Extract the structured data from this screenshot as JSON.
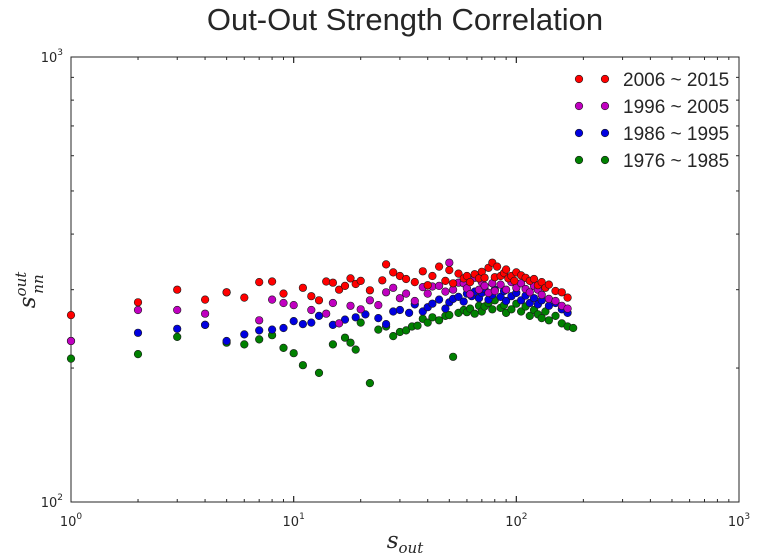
{
  "chart_data": {
    "type": "scatter",
    "title": "Out-Out Strength Correlation",
    "xlabel": {
      "base": "s",
      "sub": "out"
    },
    "ylabel": {
      "base": "s",
      "sup": "out",
      "sub": "nn"
    },
    "xscale": "log",
    "yscale": "log",
    "xlim": [
      1,
      1000
    ],
    "ylim": [
      100,
      1000
    ],
    "x_ticks": [
      {
        "base": "10",
        "exp": "0"
      },
      {
        "base": "10",
        "exp": "1"
      },
      {
        "base": "10",
        "exp": "2"
      },
      {
        "base": "10",
        "exp": "3"
      }
    ],
    "y_ticks": [
      {
        "base": "10",
        "exp": "2"
      },
      {
        "base": "10",
        "exp": "3"
      }
    ],
    "grid": false,
    "legend_position": "top-right",
    "series": [
      {
        "name": "2006 ~ 2015",
        "color": "#ff0000",
        "points": [
          [
            1,
            263
          ],
          [
            2,
            281
          ],
          [
            3,
            300
          ],
          [
            4,
            285
          ],
          [
            5,
            296
          ],
          [
            6,
            288
          ],
          [
            7,
            312
          ],
          [
            8,
            313
          ],
          [
            9,
            294
          ],
          [
            11,
            303
          ],
          [
            12,
            290
          ],
          [
            13,
            284
          ],
          [
            14,
            313
          ],
          [
            15,
            311
          ],
          [
            16,
            300
          ],
          [
            17,
            306
          ],
          [
            18,
            318
          ],
          [
            19,
            309
          ],
          [
            20,
            314
          ],
          [
            22,
            299
          ],
          [
            25,
            315
          ],
          [
            26,
            342
          ],
          [
            28,
            328
          ],
          [
            30,
            322
          ],
          [
            32,
            317
          ],
          [
            35,
            312
          ],
          [
            38,
            330
          ],
          [
            40,
            307
          ],
          [
            42,
            322
          ],
          [
            45,
            338
          ],
          [
            48,
            314
          ],
          [
            50,
            332
          ],
          [
            52,
            310
          ],
          [
            55,
            326
          ],
          [
            58,
            318
          ],
          [
            60,
            322
          ],
          [
            62,
            312
          ],
          [
            65,
            325
          ],
          [
            68,
            318
          ],
          [
            70,
            329
          ],
          [
            72,
            319
          ],
          [
            75,
            336
          ],
          [
            78,
            345
          ],
          [
            80,
            320
          ],
          [
            82,
            338
          ],
          [
            85,
            322
          ],
          [
            88,
            327
          ],
          [
            90,
            333
          ],
          [
            92,
            318
          ],
          [
            95,
            322
          ],
          [
            98,
            314
          ],
          [
            100,
            328
          ],
          [
            105,
            323
          ],
          [
            110,
            319
          ],
          [
            115,
            314
          ],
          [
            120,
            317
          ],
          [
            125,
            307
          ],
          [
            130,
            312
          ],
          [
            135,
            303
          ],
          [
            140,
            308
          ],
          [
            150,
            298
          ],
          [
            160,
            296
          ],
          [
            170,
            288
          ]
        ]
      },
      {
        "name": "1996 ~ 2005",
        "color": "#c000c0",
        "points": [
          [
            1,
            230
          ],
          [
            2,
            270
          ],
          [
            3,
            270
          ],
          [
            4,
            265
          ],
          [
            5,
            296
          ],
          [
            7,
            256
          ],
          [
            8,
            285
          ],
          [
            9,
            280
          ],
          [
            10,
            277
          ],
          [
            12,
            270
          ],
          [
            14,
            265
          ],
          [
            15,
            280
          ],
          [
            16,
            252
          ],
          [
            18,
            276
          ],
          [
            20,
            271
          ],
          [
            22,
            284
          ],
          [
            24,
            277
          ],
          [
            26,
            296
          ],
          [
            28,
            303
          ],
          [
            30,
            287
          ],
          [
            32,
            294
          ],
          [
            35,
            283
          ],
          [
            38,
            304
          ],
          [
            40,
            294
          ],
          [
            42,
            305
          ],
          [
            45,
            306
          ],
          [
            48,
            297
          ],
          [
            50,
            345
          ],
          [
            52,
            300
          ],
          [
            55,
            311
          ],
          [
            58,
            310
          ],
          [
            60,
            302
          ],
          [
            62,
            293
          ],
          [
            65,
            319
          ],
          [
            68,
            300
          ],
          [
            70,
            312
          ],
          [
            72,
            306
          ],
          [
            75,
            295
          ],
          [
            78,
            310
          ],
          [
            80,
            298
          ],
          [
            85,
            308
          ],
          [
            90,
            300
          ],
          [
            95,
            312
          ],
          [
            100,
            303
          ],
          [
            105,
            310
          ],
          [
            110,
            301
          ],
          [
            115,
            296
          ],
          [
            120,
            306
          ],
          [
            125,
            300
          ],
          [
            130,
            292
          ],
          [
            140,
            286
          ],
          [
            150,
            283
          ],
          [
            160,
            276
          ],
          [
            170,
            272
          ]
        ]
      },
      {
        "name": "1986 ~ 1995",
        "color": "#0000e0",
        "points": [
          [
            1,
            230
          ],
          [
            2,
            240
          ],
          [
            3,
            245
          ],
          [
            4,
            250
          ],
          [
            5,
            230
          ],
          [
            6,
            238
          ],
          [
            7,
            243
          ],
          [
            8,
            244
          ],
          [
            9,
            246
          ],
          [
            10,
            255
          ],
          [
            11,
            251
          ],
          [
            12,
            253
          ],
          [
            13,
            262
          ],
          [
            15,
            250
          ],
          [
            17,
            257
          ],
          [
            19,
            260
          ],
          [
            21,
            264
          ],
          [
            24,
            259
          ],
          [
            26,
            251
          ],
          [
            28,
            268
          ],
          [
            30,
            270
          ],
          [
            33,
            266
          ],
          [
            35,
            278
          ],
          [
            38,
            268
          ],
          [
            40,
            274
          ],
          [
            42,
            279
          ],
          [
            45,
            285
          ],
          [
            48,
            272
          ],
          [
            50,
            281
          ],
          [
            52,
            286
          ],
          [
            55,
            289
          ],
          [
            58,
            282
          ],
          [
            60,
            294
          ],
          [
            63,
            290
          ],
          [
            65,
            297
          ],
          [
            68,
            287
          ],
          [
            70,
            295
          ],
          [
            72,
            301
          ],
          [
            75,
            285
          ],
          [
            78,
            292
          ],
          [
            80,
            300
          ],
          [
            85,
            289
          ],
          [
            88,
            298
          ],
          [
            90,
            283
          ],
          [
            95,
            290
          ],
          [
            100,
            295
          ],
          [
            105,
            284
          ],
          [
            110,
            291
          ],
          [
            115,
            280
          ],
          [
            120,
            287
          ],
          [
            125,
            278
          ],
          [
            130,
            284
          ],
          [
            140,
            276
          ],
          [
            150,
            280
          ],
          [
            160,
            271
          ],
          [
            170,
            266
          ]
        ]
      },
      {
        "name": "1976 ~ 1985",
        "color": "#008000",
        "points": [
          [
            1,
            210
          ],
          [
            2,
            215
          ],
          [
            3,
            235
          ],
          [
            4,
            250
          ],
          [
            5,
            228
          ],
          [
            6,
            226
          ],
          [
            7,
            232
          ],
          [
            8,
            237
          ],
          [
            9,
            222
          ],
          [
            10,
            216
          ],
          [
            11,
            203
          ],
          [
            13,
            195
          ],
          [
            15,
            226
          ],
          [
            17,
            234
          ],
          [
            18,
            228
          ],
          [
            19,
            220
          ],
          [
            22,
            185
          ],
          [
            20,
            253
          ],
          [
            24,
            244
          ],
          [
            26,
            248
          ],
          [
            28,
            236
          ],
          [
            30,
            241
          ],
          [
            32,
            243
          ],
          [
            34,
            248
          ],
          [
            36,
            249
          ],
          [
            38,
            258
          ],
          [
            40,
            253
          ],
          [
            42,
            260
          ],
          [
            45,
            256
          ],
          [
            48,
            262
          ],
          [
            50,
            263
          ],
          [
            52,
            212
          ],
          [
            55,
            266
          ],
          [
            58,
            270
          ],
          [
            60,
            267
          ],
          [
            62,
            272
          ],
          [
            65,
            265
          ],
          [
            68,
            276
          ],
          [
            70,
            268
          ],
          [
            72,
            275
          ],
          [
            75,
            280
          ],
          [
            78,
            271
          ],
          [
            80,
            284
          ],
          [
            85,
            273
          ],
          [
            88,
            277
          ],
          [
            90,
            266
          ],
          [
            95,
            271
          ],
          [
            100,
            279
          ],
          [
            105,
            268
          ],
          [
            110,
            275
          ],
          [
            115,
            262
          ],
          [
            120,
            270
          ],
          [
            125,
            264
          ],
          [
            130,
            259
          ],
          [
            135,
            268
          ],
          [
            140,
            256
          ],
          [
            150,
            262
          ],
          [
            160,
            252
          ],
          [
            170,
            248
          ],
          [
            180,
            246
          ]
        ]
      }
    ]
  }
}
